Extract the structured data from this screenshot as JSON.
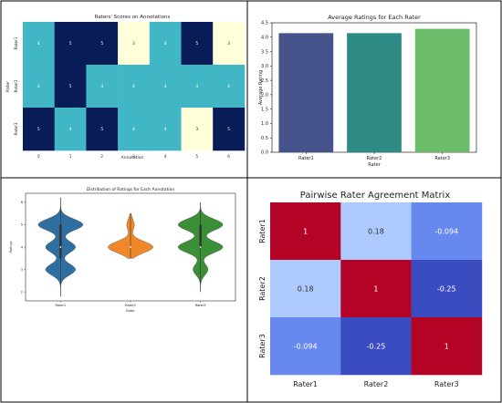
{
  "chart_data": [
    {
      "type": "heatmap",
      "title": "Raters' Scores on Annotations",
      "xlabel": "Annotation",
      "ylabel": "Rater",
      "x_categories": [
        "0",
        "1",
        "2",
        "3",
        "4",
        "5",
        "6"
      ],
      "y_categories": [
        "Rater1",
        "Rater2",
        "Rater3"
      ],
      "values": [
        [
          4,
          5,
          5,
          3,
          4,
          5,
          3
        ],
        [
          4,
          5,
          4,
          4,
          4,
          4,
          4
        ],
        [
          5,
          4,
          5,
          4,
          4,
          3,
          5
        ]
      ],
      "colors": {
        "3": "#ffffd9",
        "4": "#41b6c4",
        "5": "#081d58"
      }
    },
    {
      "type": "bar",
      "title": "Average Ratings for Each Rater",
      "xlabel": "Rater",
      "ylabel": "Average Rating",
      "categories": [
        "Rater1",
        "Rater2",
        "Rater3"
      ],
      "values": [
        4.14,
        4.14,
        4.29
      ],
      "ylim": [
        0,
        4.5
      ],
      "yticks": [
        "0.0",
        "0.5",
        "1.0",
        "1.5",
        "2.0",
        "2.5",
        "3.0",
        "3.5",
        "4.0",
        "4.5"
      ],
      "colors": [
        "#46538a",
        "#2d8a85",
        "#6cbd6a"
      ]
    },
    {
      "type": "violin",
      "title": "Distribution of Ratings for Each Annotation",
      "xlabel": "Rater",
      "ylabel": "Ratings",
      "categories": [
        "Rater1",
        "Rater2",
        "Rater3"
      ],
      "yticks": [
        "2",
        "3",
        "4",
        "5",
        "6"
      ],
      "ylim": [
        1.6,
        6.4
      ],
      "series": [
        {
          "values": [
            4,
            5,
            5,
            3,
            4,
            5,
            3
          ],
          "median": 4,
          "q1": 3.5,
          "q3": 5,
          "range": [
            1.8,
            6.2
          ],
          "color": "#2f6fa0"
        },
        {
          "values": [
            4,
            5,
            4,
            4,
            4,
            4,
            4
          ],
          "median": 4,
          "q1": 4,
          "q3": 4,
          "range": [
            3.5,
            5.5
          ],
          "color": "#f0882a"
        },
        {
          "values": [
            5,
            4,
            5,
            4,
            4,
            3,
            5
          ],
          "median": 4,
          "q1": 4,
          "q3": 5,
          "range": [
            2,
            6
          ],
          "color": "#3a8f37"
        }
      ]
    },
    {
      "type": "heatmap",
      "title": "Pairwise Rater Agreement Matrix",
      "x_categories": [
        "Rater1",
        "Rater2",
        "Rater3"
      ],
      "y_categories": [
        "Rater1",
        "Rater2",
        "Rater3"
      ],
      "values": [
        [
          1,
          0.18,
          -0.094
        ],
        [
          0.18,
          1,
          -0.25
        ],
        [
          -0.094,
          -0.25,
          1
        ]
      ],
      "labels": [
        [
          "1",
          "0.18",
          "-0.094"
        ],
        [
          "0.18",
          "1",
          "-0.25"
        ],
        [
          "-0.094",
          "-0.25",
          "1"
        ]
      ],
      "colors": {
        "1": "#b40426",
        "0.18": "#aec9fc",
        "-0.094": "#6788ee",
        "-0.25": "#3b4cc0"
      }
    }
  ]
}
